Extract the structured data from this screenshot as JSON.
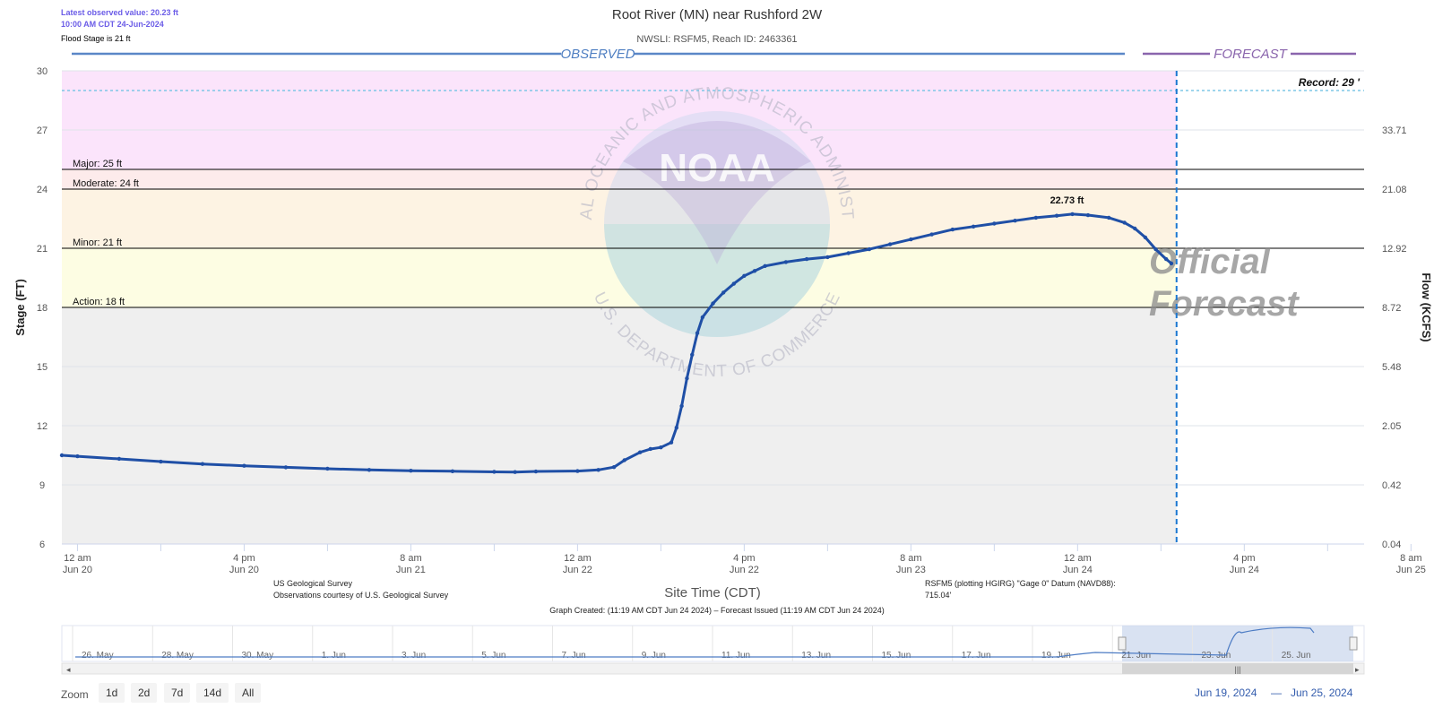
{
  "header": {
    "latest_value": "Latest observed value: 20.23 ft",
    "latest_time": "10:00 AM CDT 24-Jun-2024",
    "flood_stage": "Flood Stage is 21 ft",
    "title": "Root River (MN) near Rushford 2W",
    "subtitle": "NWSLI: RSFM5, Reach ID: 2463361"
  },
  "chart_data": {
    "type": "line",
    "section_labels": {
      "observed": "OBSERVED",
      "forecast": "FORECAST"
    },
    "watermark": {
      "forecast_line1": "Official",
      "forecast_line2": "Forecast",
      "noaa_text": "NOAA",
      "noaa_ring_top": "NATIONAL OCEANIC AND ATMOSPHERIC ADMINISTRATION",
      "noaa_ring_bottom": "U.S. DEPARTMENT OF COMMERCE"
    },
    "ylabel": "Stage (FT)",
    "y2label": "Flow (KCFS)",
    "xlabel": "Site Time (CDT)",
    "ylim": [
      6,
      30
    ],
    "y_ticks": [
      "30",
      "27",
      "24",
      "21",
      "18",
      "15",
      "12",
      "9",
      "6"
    ],
    "y_tick_values": [
      30,
      27,
      24,
      21,
      18,
      15,
      12,
      9,
      6
    ],
    "y2_ticks": [
      {
        "stage": 27,
        "label": "33.71"
      },
      {
        "stage": 24,
        "label": "21.08"
      },
      {
        "stage": 21,
        "label": "12.92"
      },
      {
        "stage": 18,
        "label": "8.72"
      },
      {
        "stage": 15,
        "label": "5.48"
      },
      {
        "stage": 12,
        "label": "2.05"
      },
      {
        "stage": 9,
        "label": "0.42"
      },
      {
        "stage": 6,
        "label": "0.04"
      }
    ],
    "x_range_hours": [
      -1.5,
      123.5
    ],
    "x_ticks": [
      {
        "hour": 0,
        "time": "12 am",
        "date": "Jun 20"
      },
      {
        "hour": 16,
        "time": "4 pm",
        "date": "Jun 20"
      },
      {
        "hour": 32,
        "time": "8 am",
        "date": "Jun 21"
      },
      {
        "hour": 48,
        "time": "12 am",
        "date": "Jun 22"
      },
      {
        "hour": 64,
        "time": "4 pm",
        "date": "Jun 22"
      },
      {
        "hour": 80,
        "time": "8 am",
        "date": "Jun 23"
      },
      {
        "hour": 96,
        "time": "12 am",
        "date": "Jun 24"
      },
      {
        "hour": 112,
        "time": "4 pm",
        "date": "Jun 24"
      },
      {
        "hour": 128,
        "time": "8 am",
        "date": "Jun 25"
      }
    ],
    "flood_categories": [
      {
        "name": "Action",
        "label": "Action: 18 ft",
        "value": 18,
        "color": "#fdfde3"
      },
      {
        "name": "Minor",
        "label": "Minor: 21 ft",
        "value": 21,
        "color": "#fdf3e3"
      },
      {
        "name": "Moderate",
        "label": "Moderate: 24 ft",
        "value": 24,
        "color": "#fdebeb"
      },
      {
        "name": "Major",
        "label": "Major: 25 ft",
        "value": 25,
        "color": "#fbe4fb"
      }
    ],
    "record": {
      "label": "Record: 29 '",
      "value": 29
    },
    "below_action_color": "#efefef",
    "forecast_start_hour": 105.5,
    "peak": {
      "label": "22.73 ft",
      "hour": 95.5,
      "value": 22.73
    },
    "series": [
      {
        "color": "#1f4fa6",
        "points": [
          [
            -1.5,
            10.5
          ],
          [
            0,
            10.45
          ],
          [
            4,
            10.32
          ],
          [
            8,
            10.18
          ],
          [
            12,
            10.06
          ],
          [
            16,
            9.97
          ],
          [
            20,
            9.89
          ],
          [
            24,
            9.82
          ],
          [
            28,
            9.76
          ],
          [
            32,
            9.72
          ],
          [
            36,
            9.69
          ],
          [
            40,
            9.66
          ],
          [
            42,
            9.65
          ],
          [
            44,
            9.68
          ],
          [
            48,
            9.7
          ],
          [
            50,
            9.76
          ],
          [
            51.5,
            9.9
          ],
          [
            52.5,
            10.25
          ],
          [
            54,
            10.65
          ],
          [
            55,
            10.82
          ],
          [
            56,
            10.9
          ],
          [
            57,
            11.15
          ],
          [
            57.5,
            11.9
          ],
          [
            58,
            13.0
          ],
          [
            58.5,
            14.4
          ],
          [
            59,
            15.6
          ],
          [
            59.5,
            16.7
          ],
          [
            60,
            17.5
          ],
          [
            61,
            18.2
          ],
          [
            62,
            18.75
          ],
          [
            63,
            19.2
          ],
          [
            64,
            19.6
          ],
          [
            65,
            19.85
          ],
          [
            66,
            20.1
          ],
          [
            68,
            20.3
          ],
          [
            70,
            20.45
          ],
          [
            72,
            20.55
          ],
          [
            74,
            20.75
          ],
          [
            76,
            20.95
          ],
          [
            78,
            21.2
          ],
          [
            80,
            21.45
          ],
          [
            82,
            21.7
          ],
          [
            84,
            21.95
          ],
          [
            86,
            22.1
          ],
          [
            88,
            22.25
          ],
          [
            90,
            22.4
          ],
          [
            92,
            22.55
          ],
          [
            94,
            22.65
          ],
          [
            95.5,
            22.73
          ],
          [
            97,
            22.68
          ],
          [
            99,
            22.55
          ],
          [
            100.5,
            22.3
          ],
          [
            101.5,
            22.0
          ],
          [
            102.5,
            21.55
          ],
          [
            103.5,
            20.95
          ],
          [
            104.5,
            20.45
          ],
          [
            105,
            20.23
          ]
        ]
      }
    ]
  },
  "footer": {
    "usgs_line1": "US Geological Survey",
    "usgs_line2": "Observations courtesy of U.S. Geological Survey",
    "datum_line1": "RSFM5 (plotting HGIRG) \"Gage 0\" Datum (NAVD88):",
    "datum_line2": "715.04'",
    "created": "Graph Created: (11:19 AM CDT Jun 24 2024) – Forecast Issued (11:19 AM CDT Jun 24 2024)"
  },
  "navigator": {
    "labels": [
      "26. May",
      "28. May",
      "30. May",
      "1. Jun",
      "3. Jun",
      "5. Jun",
      "7. Jun",
      "9. Jun",
      "11. Jun",
      "13. Jun",
      "15. Jun",
      "17. Jun",
      "19. Jun",
      "21. Jun",
      "23. Jun",
      "25. Jun"
    ]
  },
  "zoom": {
    "label": "Zoom",
    "buttons": [
      "1d",
      "2d",
      "7d",
      "14d",
      "All"
    ]
  },
  "range": {
    "from": "Jun 19, 2024",
    "separator": "—",
    "to": "Jun 25, 2024"
  }
}
